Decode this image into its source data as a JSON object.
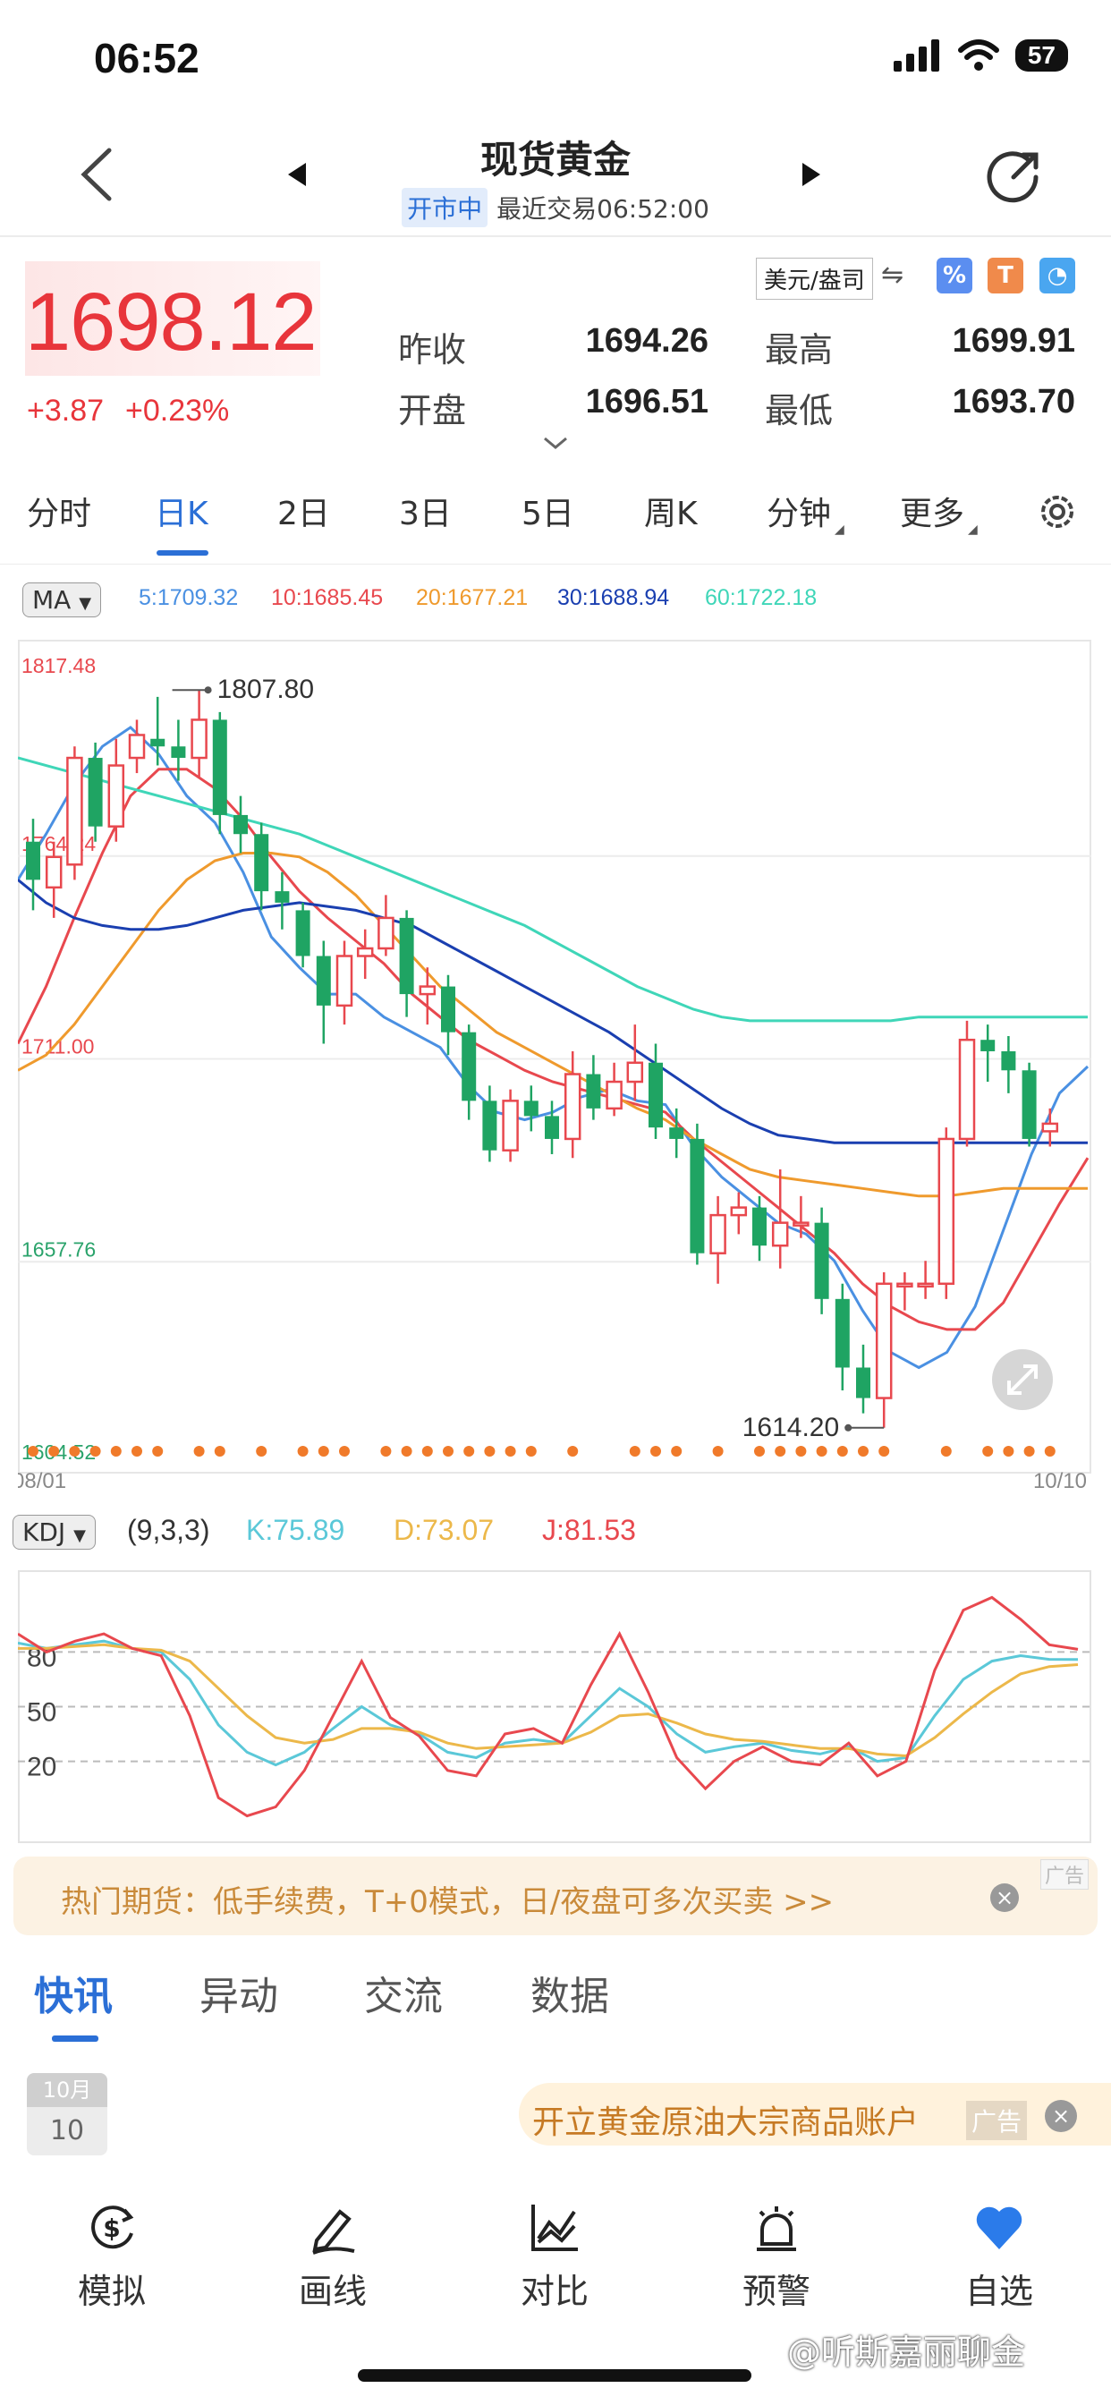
{
  "status": {
    "time": "06:52",
    "battery": "57"
  },
  "header": {
    "title": "现货黄金",
    "market_state": "开市中",
    "last_trade": "最近交易06:52:00"
  },
  "quote": {
    "price": "1698.12",
    "change": "+3.87",
    "change_pct": "+0.23%",
    "unit": "美元/盎司",
    "stats": [
      {
        "label": "昨收",
        "value": "1694.26"
      },
      {
        "label": "最高",
        "value": "1699.91"
      },
      {
        "label": "开盘",
        "value": "1696.51"
      },
      {
        "label": "最低",
        "value": "1693.70"
      }
    ]
  },
  "tabs": [
    "分时",
    "日K",
    "2日",
    "3日",
    "5日",
    "周K",
    "分钟",
    "更多"
  ],
  "ma": {
    "label": "MA",
    "items": [
      {
        "text": "5:1709.32",
        "color": "#4a90e2"
      },
      {
        "text": "10:1685.45",
        "color": "#e8484e"
      },
      {
        "text": "20:1677.21",
        "color": "#ef9a2d"
      },
      {
        "text": "30:1688.94",
        "color": "#1a3fb0"
      },
      {
        "text": "60:1722.18",
        "color": "#3fd6b8"
      }
    ]
  },
  "chart_data": {
    "type": "candlestick",
    "y_axis_labels": [
      "1817.48",
      "1764.24",
      "1711.00",
      "1657.76",
      "1604.52"
    ],
    "ylim": [
      1604.52,
      1817.48
    ],
    "x_labels": [
      "08/01",
      "10/10"
    ],
    "annotations": [
      {
        "text": "1807.80",
        "value": 1807.8
      },
      {
        "text": "1614.20",
        "value": 1614.2
      }
    ],
    "candles": [
      [
        1768,
        1758,
        1774,
        1750
      ],
      [
        1756,
        1764,
        1768,
        1748
      ],
      [
        1762,
        1790,
        1793,
        1758
      ],
      [
        1790,
        1772,
        1794,
        1768
      ],
      [
        1772,
        1788,
        1795,
        1768
      ],
      [
        1790,
        1796,
        1800,
        1786
      ],
      [
        1795,
        1793,
        1806,
        1788
      ],
      [
        1793,
        1790,
        1800,
        1784
      ],
      [
        1790,
        1800,
        1807.8,
        1785
      ],
      [
        1800,
        1775,
        1802,
        1770
      ],
      [
        1775,
        1770,
        1780,
        1765
      ],
      [
        1770,
        1755,
        1773,
        1750
      ],
      [
        1755,
        1752,
        1760,
        1745
      ],
      [
        1750,
        1738,
        1752,
        1735
      ],
      [
        1738,
        1725,
        1742,
        1715
      ],
      [
        1725,
        1738,
        1742,
        1720
      ],
      [
        1738,
        1740,
        1745,
        1732
      ],
      [
        1740,
        1748,
        1754,
        1738
      ],
      [
        1748,
        1728,
        1750,
        1722
      ],
      [
        1728,
        1730,
        1735,
        1720
      ],
      [
        1730,
        1718,
        1733,
        1712
      ],
      [
        1718,
        1700,
        1720,
        1695
      ],
      [
        1700,
        1687,
        1704,
        1684
      ],
      [
        1687,
        1700,
        1703,
        1684
      ],
      [
        1700,
        1696,
        1704,
        1692
      ],
      [
        1696,
        1690,
        1700,
        1686
      ],
      [
        1690,
        1707,
        1713,
        1685
      ],
      [
        1707,
        1698,
        1712,
        1695
      ],
      [
        1698,
        1705,
        1710,
        1696
      ],
      [
        1705,
        1710,
        1720,
        1700
      ],
      [
        1710,
        1693,
        1715,
        1690
      ],
      [
        1693,
        1690,
        1698,
        1685
      ],
      [
        1690,
        1660,
        1694,
        1657
      ],
      [
        1660,
        1670,
        1675,
        1652
      ],
      [
        1670,
        1672,
        1676,
        1665
      ],
      [
        1672,
        1662,
        1675,
        1658
      ],
      [
        1662,
        1668,
        1682,
        1656
      ],
      [
        1668,
        1668,
        1675,
        1664
      ],
      [
        1668,
        1648,
        1672,
        1644
      ],
      [
        1648,
        1630,
        1652,
        1624
      ],
      [
        1630,
        1622,
        1636,
        1618
      ],
      [
        1622,
        1652,
        1655,
        1614.2
      ],
      [
        1652,
        1652,
        1655,
        1645
      ],
      [
        1652,
        1652,
        1658,
        1648
      ],
      [
        1652,
        1690,
        1693,
        1648
      ],
      [
        1690,
        1716,
        1721,
        1688
      ],
      [
        1716,
        1713,
        1720,
        1705
      ],
      [
        1713,
        1708,
        1717,
        1702
      ],
      [
        1708,
        1690,
        1710,
        1688
      ],
      [
        1692,
        1694,
        1698,
        1688
      ]
    ],
    "ma_series": [
      {
        "name": "5",
        "color": "#4a90e2",
        "values": [
          1758,
          1770,
          1783,
          1793,
          1798,
          1791,
          1780,
          1773,
          1760,
          1743,
          1735,
          1728,
          1728,
          1722,
          1718,
          1714,
          1704,
          1697,
          1695,
          1697,
          1701,
          1703,
          1700,
          1699,
          1688,
          1680,
          1674,
          1668,
          1665,
          1658,
          1645,
          1634,
          1630,
          1634,
          1646,
          1666,
          1686,
          1702,
          1709
        ]
      },
      {
        "name": "10",
        "color": "#e8484e",
        "values": [
          1715,
          1730,
          1748,
          1765,
          1780,
          1787,
          1787,
          1782,
          1774,
          1764,
          1755,
          1748,
          1742,
          1736,
          1728,
          1722,
          1716,
          1712,
          1708,
          1705,
          1703,
          1701,
          1699,
          1697,
          1690,
          1684,
          1678,
          1672,
          1666,
          1660,
          1652,
          1646,
          1642,
          1640,
          1640,
          1647,
          1660,
          1673,
          1685
        ]
      },
      {
        "name": "20",
        "color": "#ef9a2d",
        "values": [
          1708,
          1712,
          1720,
          1730,
          1740,
          1750,
          1758,
          1763,
          1765,
          1765,
          1764,
          1760,
          1754,
          1746,
          1738,
          1730,
          1724,
          1718,
          1714,
          1710,
          1706,
          1702,
          1698,
          1695,
          1690,
          1686,
          1682,
          1680,
          1679,
          1678,
          1677,
          1676,
          1675,
          1675,
          1676,
          1677,
          1677,
          1677,
          1677
        ]
      },
      {
        "name": "30",
        "color": "#1a3fb0",
        "values": [
          1758,
          1752,
          1748,
          1746,
          1745,
          1745,
          1746,
          1748,
          1750,
          1751,
          1752,
          1751,
          1750,
          1748,
          1746,
          1742,
          1738,
          1734,
          1730,
          1726,
          1722,
          1718,
          1713,
          1708,
          1703,
          1698,
          1694,
          1691,
          1690,
          1689,
          1689,
          1689,
          1689,
          1689,
          1689,
          1689,
          1689,
          1689,
          1689
        ]
      },
      {
        "name": "60",
        "color": "#3fd6b8",
        "values": [
          1790,
          1788,
          1786,
          1784,
          1782,
          1780,
          1778,
          1776,
          1774,
          1772,
          1770,
          1767,
          1764,
          1761,
          1758,
          1755,
          1752,
          1749,
          1746,
          1742,
          1738,
          1734,
          1730,
          1727,
          1724,
          1722,
          1721,
          1721,
          1721,
          1721,
          1721,
          1721,
          1722,
          1722,
          1722,
          1722,
          1722,
          1722,
          1722
        ]
      }
    ]
  },
  "kdj": {
    "label": "KDJ",
    "params": "(9,3,3)",
    "k": "K:75.89",
    "d": "D:73.07",
    "j": "J:81.53",
    "levels": [
      "80",
      "50",
      "20"
    ],
    "k_values": [
      85,
      82,
      84,
      86,
      82,
      80,
      65,
      40,
      25,
      18,
      25,
      38,
      50,
      40,
      35,
      25,
      22,
      30,
      32,
      30,
      45,
      60,
      50,
      35,
      25,
      28,
      30,
      26,
      24,
      28,
      20,
      22,
      45,
      65,
      75,
      78,
      76,
      75.9
    ],
    "d_values": [
      82,
      82,
      83,
      84,
      82,
      81,
      75,
      60,
      45,
      33,
      30,
      32,
      38,
      38,
      36,
      30,
      27,
      28,
      29,
      30,
      36,
      45,
      46,
      41,
      35,
      32,
      31,
      29,
      27,
      27,
      24,
      23,
      33,
      46,
      58,
      68,
      72,
      73.1
    ],
    "j_values": [
      90,
      80,
      86,
      90,
      82,
      78,
      45,
      0,
      -10,
      -5,
      15,
      45,
      75,
      44,
      34,
      15,
      12,
      35,
      38,
      30,
      62,
      90,
      58,
      22,
      5,
      20,
      28,
      20,
      18,
      30,
      12,
      20,
      70,
      103,
      110,
      98,
      84,
      81.5
    ]
  },
  "banner": {
    "text": "热门期货：低手续费，T+0模式，日/夜盘可多次买卖 >>",
    "ad": "广告"
  },
  "news_tabs": [
    "快讯",
    "异动",
    "交流",
    "数据"
  ],
  "date": {
    "month": "10月",
    "day": "10"
  },
  "news_ad": {
    "text": "开立黄金原油大宗商品账户",
    "ad": "广告"
  },
  "bottom_nav": [
    "模拟",
    "画线",
    "对比",
    "预警",
    "自选"
  ],
  "watermark": "@听斯嘉丽聊金"
}
